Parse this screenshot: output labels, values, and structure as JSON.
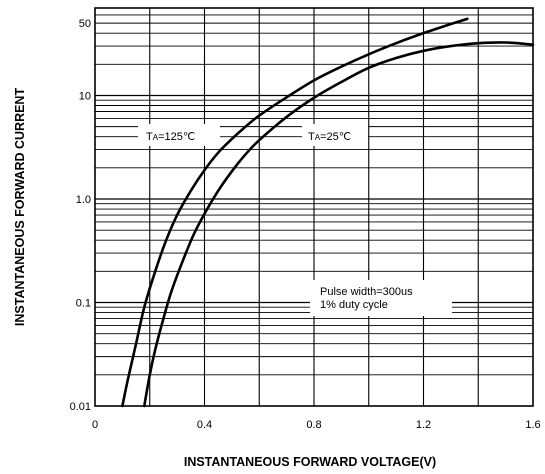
{
  "chart_data": {
    "type": "line",
    "title": "",
    "xlabel": "INSTANTANEOUS FORWARD VOLTAGE(V)",
    "ylabel": "INSTANTANEOUS FORWARD CURRENT",
    "xlim": [
      0,
      1.6
    ],
    "ylim": [
      0.01,
      70
    ],
    "yscale": "log",
    "grid": true,
    "x_ticks": [
      "0",
      "0.4",
      "0.8",
      "1.2",
      "1.6"
    ],
    "y_ticks": [
      "0.01",
      "0.1",
      "1.0",
      "10",
      "50"
    ],
    "series": [
      {
        "name": "TA=125℃",
        "x": [
          0.1,
          0.12,
          0.15,
          0.18,
          0.22,
          0.26,
          0.3,
          0.35,
          0.4,
          0.45,
          0.5,
          0.55,
          0.6,
          0.7,
          0.8,
          0.9,
          1.0,
          1.1,
          1.2,
          1.3,
          1.36
        ],
        "y": [
          0.01,
          0.018,
          0.04,
          0.09,
          0.2,
          0.4,
          0.7,
          1.2,
          1.9,
          2.8,
          3.8,
          5.0,
          6.4,
          9.6,
          14,
          19,
          25,
          32,
          40,
          49,
          55
        ]
      },
      {
        "name": "TA=25℃",
        "x": [
          0.18,
          0.2,
          0.22,
          0.25,
          0.28,
          0.32,
          0.36,
          0.4,
          0.45,
          0.5,
          0.55,
          0.6,
          0.7,
          0.8,
          0.9,
          1.0,
          1.1,
          1.2,
          1.3,
          1.4,
          1.5,
          1.6
        ],
        "y": [
          0.01,
          0.02,
          0.035,
          0.07,
          0.13,
          0.25,
          0.45,
          0.72,
          1.2,
          1.85,
          2.7,
          3.7,
          6.2,
          9.5,
          13.5,
          18.5,
          23,
          27,
          30,
          32,
          32.5,
          31
        ]
      }
    ],
    "annotations": {
      "label125_main": "T",
      "label125_sub": "A",
      "label125_rest": "=125℃",
      "label25_main": "T",
      "label25_sub": "A",
      "label25_rest": "=25℃",
      "pulse_line1": "Pulse width=300us",
      "pulse_line2": "1% duty cycle"
    }
  }
}
